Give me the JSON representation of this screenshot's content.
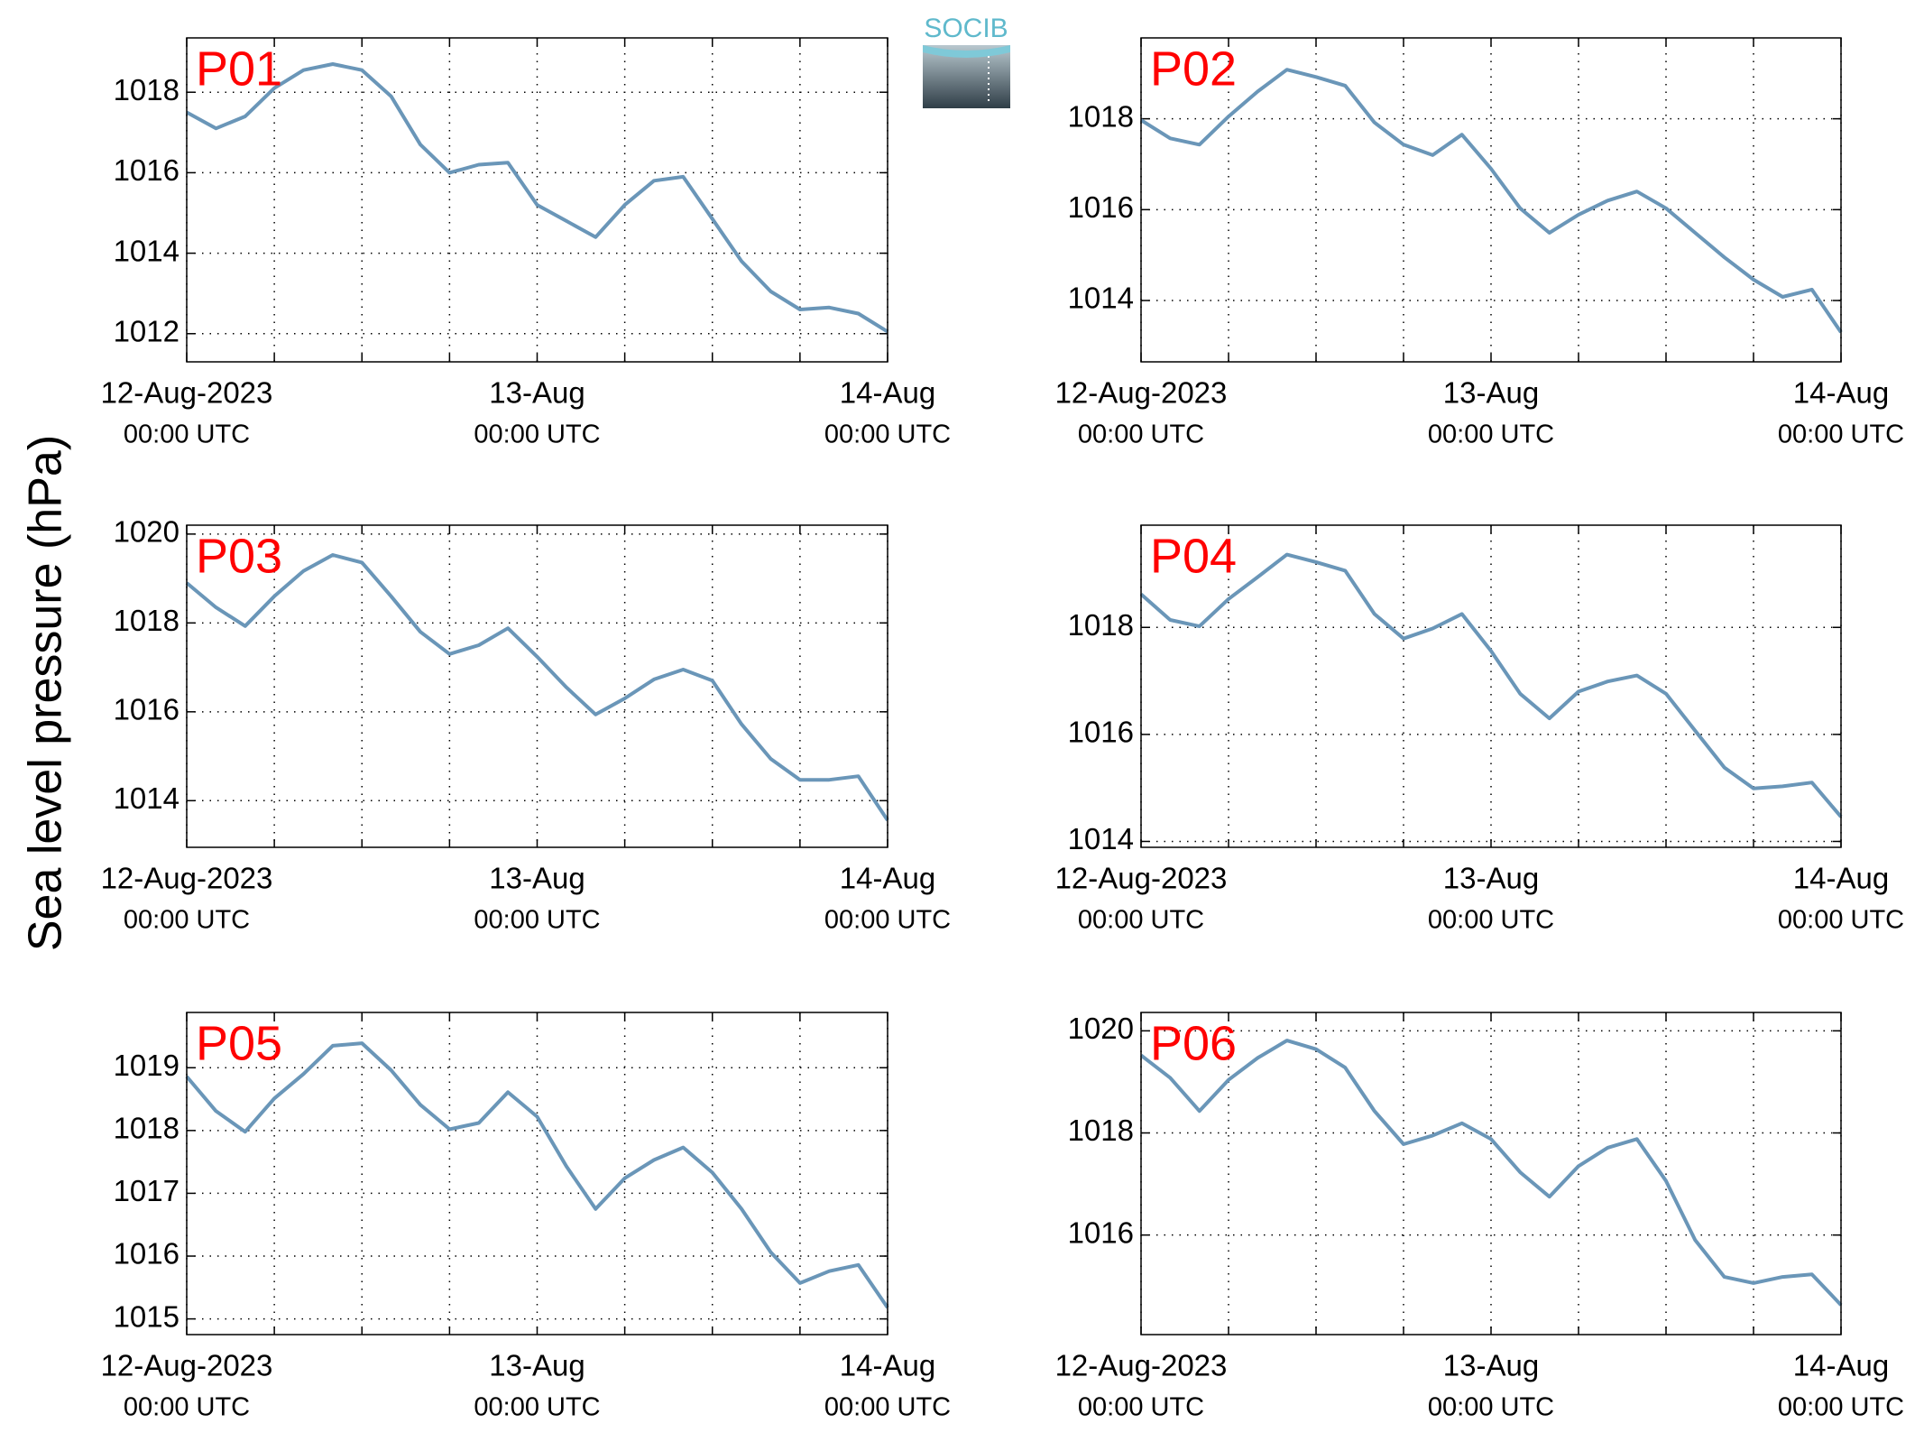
{
  "ylabel": "Sea level pressure (hPa)",
  "logo": "SOCIB",
  "chart_data": [
    {
      "type": "line",
      "title": "P01",
      "color": "#6a96b8",
      "grid": true,
      "x": [
        "2023-08-12 00:00",
        "2023-08-12 02:00",
        "2023-08-12 04:00",
        "2023-08-12 06:00",
        "2023-08-12 08:00",
        "2023-08-12 10:00",
        "2023-08-12 12:00",
        "2023-08-12 14:00",
        "2023-08-12 16:00",
        "2023-08-12 18:00",
        "2023-08-12 20:00",
        "2023-08-12 22:00",
        "2023-08-13 00:00",
        "2023-08-13 02:00",
        "2023-08-13 04:00",
        "2023-08-13 06:00",
        "2023-08-13 08:00",
        "2023-08-13 10:00",
        "2023-08-13 12:00",
        "2023-08-13 14:00",
        "2023-08-13 16:00",
        "2023-08-13 18:00",
        "2023-08-13 20:00",
        "2023-08-13 22:00",
        "2023-08-14 00:00"
      ],
      "values": [
        1017.5,
        1017.1,
        1017.4,
        1018.1,
        1018.55,
        1018.7,
        1018.55,
        1017.9,
        1016.7,
        1016.0,
        1016.2,
        1016.25,
        1015.2,
        1014.8,
        1014.4,
        1015.2,
        1015.8,
        1015.9,
        1014.85,
        1013.8,
        1013.05,
        1012.6,
        1012.65,
        1012.5,
        1012.05
      ],
      "xlim": [
        "2023-08-12 00:00",
        "2023-08-14 00:00"
      ],
      "xticks": [
        {
          "value": "2023-08-12 00:00",
          "label": [
            "12-Aug-2023",
            "00:00 UTC"
          ]
        },
        {
          "value": "2023-08-13 00:00",
          "label": [
            "13-Aug",
            "00:00 UTC"
          ]
        },
        {
          "value": "2023-08-14 00:00",
          "label": [
            "14-Aug",
            "00:00 UTC"
          ]
        }
      ],
      "xminorticks": [
        "2023-08-12 06:00",
        "2023-08-12 12:00",
        "2023-08-12 18:00",
        "2023-08-13 06:00",
        "2023-08-13 12:00",
        "2023-08-13 18:00"
      ],
      "ylim": [
        1011.3,
        1019.35
      ],
      "yticks": [
        1012,
        1014,
        1016,
        1018
      ]
    },
    {
      "type": "line",
      "title": "P02",
      "color": "#6a96b8",
      "grid": true,
      "x": [
        "2023-08-12 00:00",
        "2023-08-12 02:00",
        "2023-08-12 04:00",
        "2023-08-12 06:00",
        "2023-08-12 08:00",
        "2023-08-12 10:00",
        "2023-08-12 12:00",
        "2023-08-12 14:00",
        "2023-08-12 16:00",
        "2023-08-12 18:00",
        "2023-08-12 20:00",
        "2023-08-12 22:00",
        "2023-08-13 00:00",
        "2023-08-13 02:00",
        "2023-08-13 04:00",
        "2023-08-13 06:00",
        "2023-08-13 08:00",
        "2023-08-13 10:00",
        "2023-08-13 12:00",
        "2023-08-13 14:00",
        "2023-08-13 16:00",
        "2023-08-13 18:00",
        "2023-08-13 20:00",
        "2023-08-13 22:00",
        "2023-08-14 00:00"
      ],
      "values": [
        1017.97,
        1017.57,
        1017.43,
        1018.05,
        1018.6,
        1019.08,
        1018.92,
        1018.73,
        1017.92,
        1017.43,
        1017.2,
        1017.65,
        1016.9,
        1016.03,
        1015.49,
        1015.89,
        1016.2,
        1016.4,
        1016.03,
        1015.49,
        1014.95,
        1014.46,
        1014.08,
        1014.24,
        1013.3
      ],
      "xlim": [
        "2023-08-12 00:00",
        "2023-08-14 00:00"
      ],
      "xticks": [
        {
          "value": "2023-08-12 00:00",
          "label": [
            "12-Aug-2023",
            "00:00 UTC"
          ]
        },
        {
          "value": "2023-08-13 00:00",
          "label": [
            "13-Aug",
            "00:00 UTC"
          ]
        },
        {
          "value": "2023-08-14 00:00",
          "label": [
            "14-Aug",
            "00:00 UTC"
          ]
        }
      ],
      "xminorticks": [
        "2023-08-12 06:00",
        "2023-08-12 12:00",
        "2023-08-12 18:00",
        "2023-08-13 06:00",
        "2023-08-13 12:00",
        "2023-08-13 18:00"
      ],
      "ylim": [
        1012.65,
        1019.78
      ],
      "yticks": [
        1014,
        1016,
        1018
      ]
    },
    {
      "type": "line",
      "title": "P03",
      "color": "#6a96b8",
      "grid": true,
      "x": [
        "2023-08-12 00:00",
        "2023-08-12 02:00",
        "2023-08-12 04:00",
        "2023-08-12 06:00",
        "2023-08-12 08:00",
        "2023-08-12 10:00",
        "2023-08-12 12:00",
        "2023-08-12 14:00",
        "2023-08-12 16:00",
        "2023-08-12 18:00",
        "2023-08-12 20:00",
        "2023-08-12 22:00",
        "2023-08-13 00:00",
        "2023-08-13 02:00",
        "2023-08-13 04:00",
        "2023-08-13 06:00",
        "2023-08-13 08:00",
        "2023-08-13 10:00",
        "2023-08-13 12:00",
        "2023-08-13 14:00",
        "2023-08-13 16:00",
        "2023-08-13 18:00",
        "2023-08-13 20:00",
        "2023-08-13 22:00",
        "2023-08-14 00:00"
      ],
      "values": [
        1018.9,
        1018.35,
        1017.93,
        1018.6,
        1019.17,
        1019.53,
        1019.36,
        1018.6,
        1017.8,
        1017.3,
        1017.5,
        1017.88,
        1017.24,
        1016.55,
        1015.94,
        1016.3,
        1016.73,
        1016.95,
        1016.7,
        1015.72,
        1014.94,
        1014.47,
        1014.47,
        1014.55,
        1013.56
      ],
      "xlim": [
        "2023-08-12 00:00",
        "2023-08-14 00:00"
      ],
      "xticks": [
        {
          "value": "2023-08-12 00:00",
          "label": [
            "12-Aug-2023",
            "00:00 UTC"
          ]
        },
        {
          "value": "2023-08-13 00:00",
          "label": [
            "13-Aug",
            "00:00 UTC"
          ]
        },
        {
          "value": "2023-08-14 00:00",
          "label": [
            "14-Aug",
            "00:00 UTC"
          ]
        }
      ],
      "xminorticks": [
        "2023-08-12 06:00",
        "2023-08-12 12:00",
        "2023-08-12 18:00",
        "2023-08-13 06:00",
        "2023-08-13 12:00",
        "2023-08-13 18:00"
      ],
      "ylim": [
        1012.95,
        1020.2
      ],
      "yticks": [
        1014,
        1016,
        1018,
        1020
      ]
    },
    {
      "type": "line",
      "title": "P04",
      "color": "#6a96b8",
      "grid": true,
      "x": [
        "2023-08-12 00:00",
        "2023-08-12 02:00",
        "2023-08-12 04:00",
        "2023-08-12 06:00",
        "2023-08-12 08:00",
        "2023-08-12 10:00",
        "2023-08-12 12:00",
        "2023-08-12 14:00",
        "2023-08-12 16:00",
        "2023-08-12 18:00",
        "2023-08-12 20:00",
        "2023-08-12 22:00",
        "2023-08-13 00:00",
        "2023-08-13 02:00",
        "2023-08-13 04:00",
        "2023-08-13 06:00",
        "2023-08-13 08:00",
        "2023-08-13 10:00",
        "2023-08-13 12:00",
        "2023-08-13 14:00",
        "2023-08-13 16:00",
        "2023-08-13 18:00",
        "2023-08-13 20:00",
        "2023-08-13 22:00",
        "2023-08-14 00:00"
      ],
      "values": [
        1018.62,
        1018.14,
        1018.02,
        1018.53,
        1018.94,
        1019.36,
        1019.22,
        1019.06,
        1018.25,
        1017.79,
        1017.98,
        1018.25,
        1017.56,
        1016.76,
        1016.3,
        1016.8,
        1016.99,
        1017.1,
        1016.76,
        1016.07,
        1015.38,
        1014.99,
        1015.03,
        1015.1,
        1014.46
      ],
      "xlim": [
        "2023-08-12 00:00",
        "2023-08-14 00:00"
      ],
      "xticks": [
        {
          "value": "2023-08-12 00:00",
          "label": [
            "12-Aug-2023",
            "00:00 UTC"
          ]
        },
        {
          "value": "2023-08-13 00:00",
          "label": [
            "13-Aug",
            "00:00 UTC"
          ]
        },
        {
          "value": "2023-08-14 00:00",
          "label": [
            "14-Aug",
            "00:00 UTC"
          ]
        }
      ],
      "xminorticks": [
        "2023-08-12 06:00",
        "2023-08-12 12:00",
        "2023-08-12 18:00",
        "2023-08-13 06:00",
        "2023-08-13 12:00",
        "2023-08-13 18:00"
      ],
      "ylim": [
        1013.89,
        1019.91
      ],
      "yticks": [
        1014,
        1016,
        1018
      ]
    },
    {
      "type": "line",
      "title": "P05",
      "color": "#6a96b8",
      "grid": true,
      "x": [
        "2023-08-12 00:00",
        "2023-08-12 02:00",
        "2023-08-12 04:00",
        "2023-08-12 06:00",
        "2023-08-12 08:00",
        "2023-08-12 10:00",
        "2023-08-12 12:00",
        "2023-08-12 14:00",
        "2023-08-12 16:00",
        "2023-08-12 18:00",
        "2023-08-12 20:00",
        "2023-08-12 22:00",
        "2023-08-13 00:00",
        "2023-08-13 02:00",
        "2023-08-13 04:00",
        "2023-08-13 06:00",
        "2023-08-13 08:00",
        "2023-08-13 10:00",
        "2023-08-13 12:00",
        "2023-08-13 14:00",
        "2023-08-13 16:00",
        "2023-08-13 18:00",
        "2023-08-13 20:00",
        "2023-08-13 22:00",
        "2023-08-14 00:00"
      ],
      "values": [
        1018.86,
        1018.31,
        1017.98,
        1018.51,
        1018.9,
        1019.35,
        1019.39,
        1018.96,
        1018.41,
        1018.02,
        1018.12,
        1018.61,
        1018.22,
        1017.43,
        1016.75,
        1017.24,
        1017.53,
        1017.73,
        1017.33,
        1016.75,
        1016.06,
        1015.57,
        1015.76,
        1015.86,
        1015.18
      ],
      "xlim": [
        "2023-08-12 00:00",
        "2023-08-14 00:00"
      ],
      "xticks": [
        {
          "value": "2023-08-12 00:00",
          "label": [
            "12-Aug-2023",
            "00:00 UTC"
          ]
        },
        {
          "value": "2023-08-13 00:00",
          "label": [
            "13-Aug",
            "00:00 UTC"
          ]
        },
        {
          "value": "2023-08-14 00:00",
          "label": [
            "14-Aug",
            "00:00 UTC"
          ]
        }
      ],
      "xminorticks": [
        "2023-08-12 06:00",
        "2023-08-12 12:00",
        "2023-08-12 18:00",
        "2023-08-13 06:00",
        "2023-08-13 12:00",
        "2023-08-13 18:00"
      ],
      "ylim": [
        1014.75,
        1019.88
      ],
      "yticks": [
        1015,
        1016,
        1017,
        1018,
        1019
      ]
    },
    {
      "type": "line",
      "title": "P06",
      "color": "#6a96b8",
      "grid": true,
      "x": [
        "2023-08-12 00:00",
        "2023-08-12 02:00",
        "2023-08-12 04:00",
        "2023-08-12 06:00",
        "2023-08-12 08:00",
        "2023-08-12 10:00",
        "2023-08-12 12:00",
        "2023-08-12 14:00",
        "2023-08-12 16:00",
        "2023-08-12 18:00",
        "2023-08-12 20:00",
        "2023-08-12 22:00",
        "2023-08-13 00:00",
        "2023-08-13 02:00",
        "2023-08-13 04:00",
        "2023-08-13 06:00",
        "2023-08-13 08:00",
        "2023-08-13 10:00",
        "2023-08-13 12:00",
        "2023-08-13 14:00",
        "2023-08-13 16:00",
        "2023-08-13 18:00",
        "2023-08-13 20:00",
        "2023-08-13 22:00",
        "2023-08-14 00:00"
      ],
      "values": [
        1019.52,
        1019.08,
        1018.43,
        1019.04,
        1019.47,
        1019.81,
        1019.64,
        1019.28,
        1018.43,
        1017.78,
        1017.95,
        1018.19,
        1017.88,
        1017.23,
        1016.75,
        1017.35,
        1017.71,
        1017.88,
        1017.06,
        1015.9,
        1015.18,
        1015.06,
        1015.18,
        1015.23,
        1014.63
      ],
      "xlim": [
        "2023-08-12 00:00",
        "2023-08-14 00:00"
      ],
      "xticks": [
        {
          "value": "2023-08-12 00:00",
          "label": [
            "12-Aug-2023",
            "00:00 UTC"
          ]
        },
        {
          "value": "2023-08-13 00:00",
          "label": [
            "13-Aug",
            "00:00 UTC"
          ]
        },
        {
          "value": "2023-08-14 00:00",
          "label": [
            "14-Aug",
            "00:00 UTC"
          ]
        }
      ],
      "xminorticks": [
        "2023-08-12 06:00",
        "2023-08-12 12:00",
        "2023-08-12 18:00",
        "2023-08-13 06:00",
        "2023-08-13 12:00",
        "2023-08-13 18:00"
      ],
      "ylim": [
        1014.05,
        1020.36
      ],
      "yticks": [
        1016,
        1018,
        1020
      ]
    }
  ]
}
